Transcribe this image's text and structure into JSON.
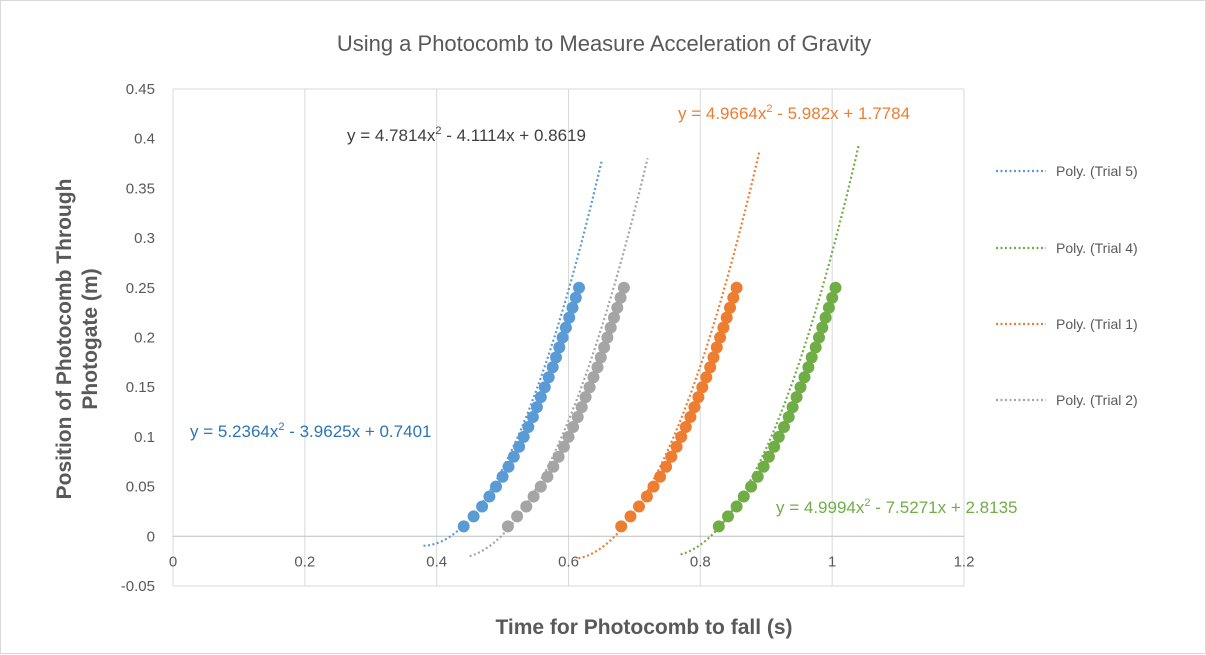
{
  "chart_data": {
    "type": "scatter",
    "title": "Using a Photocomb to Measure Acceleration of Gravity",
    "xlabel": "Time for Photocomb to fall (s)",
    "ylabel": "Position of Photocomb Through Photogate (m)",
    "ylabel_lines": [
      "Position of Photocomb Through",
      "Photogate (m)"
    ],
    "xlim": [
      0,
      1.2
    ],
    "ylim": [
      -0.05,
      0.45
    ],
    "x_ticks": [
      "0",
      "0.2",
      "0.4",
      "0.6",
      "0.8",
      "1",
      "1.2"
    ],
    "y_ticks": [
      "-0.05",
      "0",
      "0.05",
      "0.1",
      "0.15",
      "0.2",
      "0.25",
      "0.3",
      "0.35",
      "0.4",
      "0.45"
    ],
    "grid": "vertical",
    "legend_position": "right",
    "series": [
      {
        "key": "trial5",
        "color": "#5b9bd5",
        "legend": "Poly.  (Trial 5)",
        "coef": [
          5.2364,
          -3.9625,
          0.7401
        ],
        "equation_parts": [
          "y = 5.2364x",
          "2",
          " - 3.9625x + 0.7401"
        ],
        "trend_range": [
          0.38,
          0.65
        ],
        "x": [
          0.441,
          0.456,
          0.469,
          0.48,
          0.49,
          0.5,
          0.509,
          0.517,
          0.525,
          0.532,
          0.539,
          0.546,
          0.552,
          0.558,
          0.564,
          0.57,
          0.576,
          0.581,
          0.586,
          0.591,
          0.596,
          0.601,
          0.606,
          0.611,
          0.616
        ],
        "y": [
          0.01,
          0.02,
          0.03,
          0.04,
          0.05,
          0.06,
          0.07,
          0.08,
          0.09,
          0.1,
          0.11,
          0.12,
          0.13,
          0.14,
          0.15,
          0.16,
          0.17,
          0.18,
          0.19,
          0.2,
          0.21,
          0.22,
          0.23,
          0.24,
          0.25
        ]
      },
      {
        "key": "trial4",
        "color": "#70ad47",
        "legend": "Poly.  (Trial 4)",
        "coef": [
          4.9994,
          -7.5271,
          2.8135
        ],
        "equation_parts": [
          "y = 4.9994x",
          "2",
          " - 7.5271x + 2.8135"
        ],
        "trend_range": [
          0.77,
          1.04
        ],
        "x": [
          0.828,
          0.842,
          0.855,
          0.866,
          0.877,
          0.887,
          0.896,
          0.904,
          0.912,
          0.919,
          0.927,
          0.934,
          0.94,
          0.946,
          0.952,
          0.958,
          0.964,
          0.969,
          0.975,
          0.98,
          0.985,
          0.99,
          0.995,
          1.0,
          1.005
        ],
        "y": [
          0.01,
          0.02,
          0.03,
          0.04,
          0.05,
          0.06,
          0.07,
          0.08,
          0.09,
          0.1,
          0.11,
          0.12,
          0.13,
          0.14,
          0.15,
          0.16,
          0.17,
          0.18,
          0.19,
          0.2,
          0.21,
          0.22,
          0.23,
          0.24,
          0.25
        ]
      },
      {
        "key": "trial1",
        "color": "#ed7d31",
        "legend": "Poly.  (Trial 1)",
        "coef": [
          4.9664,
          -5.982,
          1.7784
        ],
        "equation_parts": [
          "y = 4.9664x",
          "2",
          " - 5.982x + 1.7784"
        ],
        "trend_range": [
          0.615,
          0.89
        ],
        "x": [
          0.68,
          0.694,
          0.707,
          0.719,
          0.729,
          0.739,
          0.748,
          0.756,
          0.764,
          0.771,
          0.778,
          0.785,
          0.791,
          0.797,
          0.803,
          0.809,
          0.815,
          0.82,
          0.825,
          0.83,
          0.835,
          0.84,
          0.845,
          0.85,
          0.855
        ],
        "y": [
          0.01,
          0.02,
          0.03,
          0.04,
          0.05,
          0.06,
          0.07,
          0.08,
          0.09,
          0.1,
          0.11,
          0.12,
          0.13,
          0.14,
          0.15,
          0.16,
          0.17,
          0.18,
          0.19,
          0.2,
          0.21,
          0.22,
          0.23,
          0.24,
          0.25
        ]
      },
      {
        "key": "trial2",
        "color": "#a5a5a5",
        "legend": "Poly.  (Trial 2)",
        "coef": [
          4.7814,
          -4.1114,
          0.8619
        ],
        "equation_parts": [
          "y = 4.7814x",
          "2",
          " - 4.1114x + 0.8619"
        ],
        "trend_range": [
          0.45,
          0.72
        ],
        "x": [
          0.508,
          0.522,
          0.536,
          0.547,
          0.558,
          0.568,
          0.577,
          0.585,
          0.593,
          0.6,
          0.607,
          0.614,
          0.62,
          0.626,
          0.632,
          0.638,
          0.644,
          0.649,
          0.654,
          0.659,
          0.664,
          0.669,
          0.674,
          0.679,
          0.684
        ],
        "y": [
          0.01,
          0.02,
          0.03,
          0.04,
          0.05,
          0.06,
          0.07,
          0.08,
          0.09,
          0.1,
          0.11,
          0.12,
          0.13,
          0.14,
          0.15,
          0.16,
          0.17,
          0.18,
          0.19,
          0.2,
          0.21,
          0.22,
          0.23,
          0.24,
          0.25
        ]
      }
    ]
  }
}
